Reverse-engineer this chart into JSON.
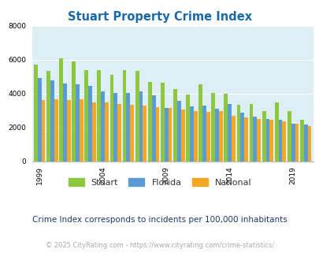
{
  "title": "Stuart Property Crime Index",
  "title_color": "#1a6aaa",
  "years": [
    1999,
    2000,
    2001,
    2002,
    2003,
    2004,
    2005,
    2006,
    2007,
    2008,
    2009,
    2010,
    2011,
    2012,
    2013,
    2014,
    2015,
    2016,
    2017,
    2018,
    2019,
    2020
  ],
  "stuart": [
    5700,
    5350,
    6100,
    5900,
    5400,
    5400,
    5100,
    5400,
    5350,
    4700,
    4650,
    4250,
    3950,
    4550,
    4050,
    4000,
    3350,
    3400,
    2950,
    3500,
    2950,
    2450
  ],
  "florida": [
    4900,
    4800,
    4600,
    4550,
    4450,
    4150,
    4050,
    4050,
    4150,
    3900,
    3150,
    3550,
    3250,
    3300,
    3100,
    3400,
    2850,
    2650,
    2500,
    2450,
    2200,
    2150
  ],
  "national": [
    3600,
    3650,
    3600,
    3650,
    3500,
    3500,
    3400,
    3350,
    3300,
    3200,
    3150,
    3050,
    2950,
    2900,
    2950,
    2700,
    2600,
    2500,
    2450,
    2350,
    2200,
    2100
  ],
  "stuart_color": "#8dc63f",
  "florida_color": "#5b9bd5",
  "national_color": "#f5a623",
  "bg_color": "#deeef5",
  "ylim": [
    0,
    8000
  ],
  "yticks": [
    0,
    2000,
    4000,
    6000,
    8000
  ],
  "xlabel_ticks": [
    1999,
    2004,
    2009,
    2014,
    2019
  ],
  "note_text": "Crime Index corresponds to incidents per 100,000 inhabitants",
  "copyright_text": "© 2025 CityRating.com - https://www.cityrating.com/crime-statistics/",
  "note_color": "#1a3a6b",
  "copyright_color": "#aaaaaa",
  "legend_labels": [
    "Stuart",
    "Florida",
    "National"
  ],
  "bar_width": 0.3
}
